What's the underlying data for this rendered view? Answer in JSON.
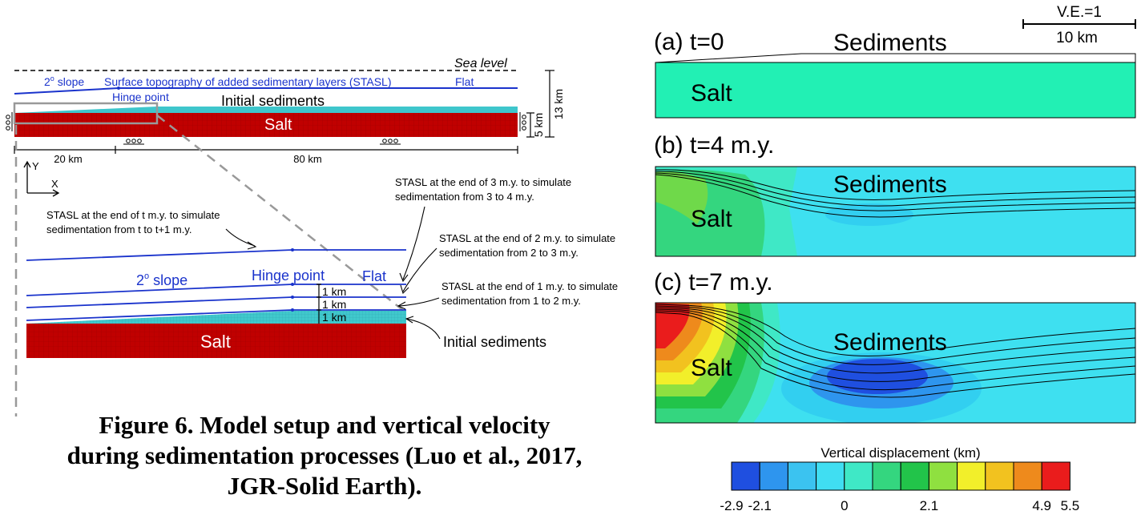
{
  "setup": {
    "sea_level": "Sea level",
    "slope": "2",
    "slope_suffix": " slope",
    "stasl_label": "Surface topography of added sedimentary layers (STASL)",
    "flat": "Flat",
    "hinge": "Hinge point",
    "initial_sediments": "Initial sediments",
    "salt": "Salt",
    "dim_13km": "13 km",
    "dim_5km": "5 km",
    "dim_20km": "20 km",
    "dim_80km": "80 km",
    "axis_y": "Y",
    "axis_x": "X"
  },
  "zoom": {
    "stasl_t_line1": "STASL at the end of t m.y. to simulate",
    "stasl_t_line2": "sedimentation from t to t+1 m.y.",
    "stasl3_line1": "STASL at the end of 3 m.y. to simulate",
    "stasl3_line2": "sedimentation from 3 to 4 m.y.",
    "stasl2_line1": "STASL at the end of 2 m.y. to simulate",
    "stasl2_line2": "sedimentation from 2 to 3 m.y.",
    "stasl1_line1": "STASL at the end of 1 m.y. to simulate",
    "stasl1_line2": "sedimentation from 1 to 2 m.y.",
    "slope": "2",
    "slope_suffix": " slope",
    "hinge": "Hinge point",
    "flat": "Flat",
    "km1": "1 km",
    "km2": "1 km",
    "km3": "1 km",
    "salt": "Salt",
    "initial_sediments": "Initial sediments"
  },
  "panels": {
    "scale_ve": "V.E.=1",
    "scale_len": "10 km",
    "a_title": "(a) t=0",
    "b_title": "(b) t=4 m.y.",
    "c_title": "(c) t=7 m.y.",
    "sediments": "Sediments",
    "salt": "Salt"
  },
  "colorbar": {
    "title": "Vertical displacement (km)",
    "colors": [
      "#1f4fe0",
      "#2e95ee",
      "#3bc3f0",
      "#40def2",
      "#3fe8c6",
      "#34d67f",
      "#22c44a",
      "#8fe040",
      "#f2ef2a",
      "#f2c21f",
      "#ee8a1c",
      "#ea1c1c"
    ],
    "ticks": [
      {
        "label": "-2.9",
        "index": 0
      },
      {
        "label": "-2.1",
        "index": 1
      },
      {
        "label": "0",
        "index": 4
      },
      {
        "label": "2.1",
        "index": 7
      },
      {
        "label": "4.9",
        "index": 11
      },
      {
        "label": "5.5",
        "index": 12
      }
    ]
  },
  "caption": {
    "line1": "Figure 6. Model setup and vertical velocity",
    "line2": "during sedimentation processes (Luo et al., 2017,",
    "line3": "JGR-Solid Earth)."
  }
}
